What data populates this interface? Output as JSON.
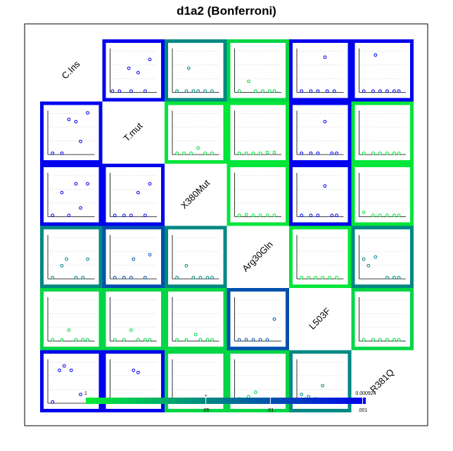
{
  "chart_data": {
    "type": "scatter-matrix",
    "title": "d1a2 (Bonferroni)",
    "variables": [
      "C.Ins",
      "T.mut",
      "X380Mut",
      "Arg30Gln",
      "L503F",
      "R381Q"
    ],
    "pvalue_matrix": [
      [
        null,
        0.001,
        0.05,
        0.5,
        0.001,
        0.001
      ],
      [
        0.001,
        null,
        0.8,
        0.8,
        0.001,
        0.8
      ],
      [
        0.001,
        0.001,
        null,
        0.8,
        0.001,
        0.8
      ],
      [
        0.05,
        0.01,
        0.05,
        null,
        0.8,
        0.05
      ],
      [
        0.5,
        0.5,
        0.5,
        0.01,
        null,
        0.5
      ],
      [
        0.001,
        0.001,
        0.5,
        0.5,
        0.05,
        null
      ]
    ],
    "panel_points": [
      [
        null,
        [
          [
            0.05,
            0.03
          ],
          [
            0.2,
            0.03
          ],
          [
            0.45,
            0.03
          ],
          [
            0.4,
            0.55
          ],
          [
            0.6,
            0.45
          ],
          [
            0.75,
            0.03
          ],
          [
            0.85,
            0.75
          ]
        ],
        [
          [
            0.1,
            0.03
          ],
          [
            0.3,
            0.03
          ],
          [
            0.45,
            0.03
          ],
          [
            0.55,
            0.03
          ],
          [
            0.7,
            0.03
          ],
          [
            0.85,
            0.03
          ],
          [
            0.35,
            0.55
          ]
        ],
        [
          [
            0.1,
            0.03
          ],
          [
            0.3,
            0.25
          ],
          [
            0.45,
            0.03
          ],
          [
            0.6,
            0.03
          ],
          [
            0.75,
            0.03
          ],
          [
            0.85,
            0.03
          ]
        ],
        [
          [
            0.1,
            0.03
          ],
          [
            0.3,
            0.03
          ],
          [
            0.45,
            0.03
          ],
          [
            0.65,
            0.03
          ],
          [
            0.8,
            0.03
          ],
          [
            0.6,
            0.8
          ]
        ],
        [
          [
            0.1,
            0.03
          ],
          [
            0.3,
            0.03
          ],
          [
            0.45,
            0.03
          ],
          [
            0.6,
            0.03
          ],
          [
            0.75,
            0.03
          ],
          [
            0.85,
            0.03
          ],
          [
            0.35,
            0.85
          ]
        ]
      ],
      [
        [
          [
            0.1,
            0.03
          ],
          [
            0.3,
            0.03
          ],
          [
            0.45,
            0.8
          ],
          [
            0.6,
            0.75
          ],
          [
            0.7,
            0.3
          ],
          [
            0.85,
            0.95
          ]
        ],
        null,
        [
          [
            0.1,
            0.03
          ],
          [
            0.25,
            0.03
          ],
          [
            0.4,
            0.03
          ],
          [
            0.55,
            0.15
          ],
          [
            0.7,
            0.03
          ],
          [
            0.85,
            0.03
          ]
        ],
        [
          [
            0.1,
            0.03
          ],
          [
            0.25,
            0.03
          ],
          [
            0.4,
            0.03
          ],
          [
            0.55,
            0.03
          ],
          [
            0.7,
            0.05
          ],
          [
            0.85,
            0.05
          ]
        ],
        [
          [
            0.1,
            0.03
          ],
          [
            0.3,
            0.03
          ],
          [
            0.45,
            0.03
          ],
          [
            0.6,
            0.75
          ],
          [
            0.75,
            0.03
          ],
          [
            0.85,
            0.03
          ]
        ],
        [
          [
            0.1,
            0.03
          ],
          [
            0.3,
            0.03
          ],
          [
            0.45,
            0.03
          ],
          [
            0.6,
            0.03
          ],
          [
            0.75,
            0.03
          ],
          [
            0.85,
            0.03
          ]
        ]
      ],
      [
        [
          [
            0.1,
            0.03
          ],
          [
            0.3,
            0.55
          ],
          [
            0.45,
            0.03
          ],
          [
            0.6,
            0.75
          ],
          [
            0.7,
            0.2
          ],
          [
            0.85,
            0.75
          ]
        ],
        [
          [
            0.1,
            0.03
          ],
          [
            0.3,
            0.03
          ],
          [
            0.45,
            0.03
          ],
          [
            0.6,
            0.55
          ],
          [
            0.75,
            0.03
          ],
          [
            0.85,
            0.75
          ]
        ],
        null,
        [
          [
            0.1,
            0.03
          ],
          [
            0.25,
            0.05
          ],
          [
            0.4,
            0.03
          ],
          [
            0.55,
            0.03
          ],
          [
            0.7,
            0.03
          ],
          [
            0.85,
            0.03
          ]
        ],
        [
          [
            0.1,
            0.03
          ],
          [
            0.3,
            0.03
          ],
          [
            0.45,
            0.03
          ],
          [
            0.6,
            0.7
          ],
          [
            0.75,
            0.03
          ],
          [
            0.85,
            0.03
          ]
        ],
        [
          [
            0.1,
            0.1
          ],
          [
            0.3,
            0.03
          ],
          [
            0.45,
            0.03
          ],
          [
            0.6,
            0.03
          ],
          [
            0.75,
            0.03
          ],
          [
            0.85,
            0.03
          ]
        ]
      ],
      [
        [
          [
            0.1,
            0.03
          ],
          [
            0.3,
            0.3
          ],
          [
            0.4,
            0.45
          ],
          [
            0.6,
            0.03
          ],
          [
            0.75,
            0.03
          ],
          [
            0.85,
            0.45
          ]
        ],
        [
          [
            0.1,
            0.03
          ],
          [
            0.3,
            0.03
          ],
          [
            0.45,
            0.03
          ],
          [
            0.5,
            0.45
          ],
          [
            0.75,
            0.03
          ],
          [
            0.85,
            0.55
          ]
        ],
        [
          [
            0.1,
            0.03
          ],
          [
            0.3,
            0.3
          ],
          [
            0.45,
            0.03
          ],
          [
            0.6,
            0.03
          ],
          [
            0.75,
            0.03
          ],
          [
            0.85,
            0.03
          ]
        ],
        null,
        [
          [
            0.1,
            0.03
          ],
          [
            0.25,
            0.03
          ],
          [
            0.4,
            0.03
          ],
          [
            0.55,
            0.03
          ],
          [
            0.7,
            0.03
          ],
          [
            0.85,
            0.03
          ]
        ],
        [
          [
            0.1,
            0.45
          ],
          [
            0.2,
            0.3
          ],
          [
            0.35,
            0.5
          ],
          [
            0.6,
            0.03
          ],
          [
            0.75,
            0.03
          ],
          [
            0.85,
            0.03
          ]
        ]
      ],
      [
        [
          [
            0.1,
            0.03
          ],
          [
            0.3,
            0.03
          ],
          [
            0.45,
            0.25
          ],
          [
            0.6,
            0.03
          ],
          [
            0.75,
            0.03
          ],
          [
            0.85,
            0.03
          ]
        ],
        [
          [
            0.1,
            0.03
          ],
          [
            0.3,
            0.03
          ],
          [
            0.45,
            0.25
          ],
          [
            0.6,
            0.03
          ],
          [
            0.75,
            0.03
          ],
          [
            0.85,
            0.03
          ]
        ],
        [
          [
            0.1,
            0.03
          ],
          [
            0.3,
            0.03
          ],
          [
            0.5,
            0.15
          ],
          [
            0.6,
            0.03
          ],
          [
            0.75,
            0.03
          ],
          [
            0.85,
            0.03
          ]
        ],
        [
          [
            0.1,
            0.03
          ],
          [
            0.25,
            0.03
          ],
          [
            0.4,
            0.03
          ],
          [
            0.55,
            0.03
          ],
          [
            0.7,
            0.03
          ],
          [
            0.85,
            0.5
          ]
        ],
        null,
        [
          [
            0.1,
            0.03
          ],
          [
            0.3,
            0.03
          ],
          [
            0.45,
            0.03
          ],
          [
            0.6,
            0.03
          ],
          [
            0.75,
            0.03
          ],
          [
            0.85,
            0.03
          ]
        ]
      ],
      [
        [
          [
            0.1,
            0.03
          ],
          [
            0.25,
            0.75
          ],
          [
            0.35,
            0.85
          ],
          [
            0.5,
            0.75
          ],
          [
            0.7,
            0.2
          ],
          [
            0.85,
            0.03
          ]
        ],
        [
          [
            0.1,
            0.03
          ],
          [
            0.3,
            0.03
          ],
          [
            0.5,
            0.75
          ],
          [
            0.6,
            0.7
          ],
          [
            0.75,
            0.03
          ],
          [
            0.85,
            0.03
          ]
        ],
        [
          [
            0.1,
            0.03
          ],
          [
            0.3,
            0.03
          ],
          [
            0.45,
            0.03
          ],
          [
            0.55,
            0.05
          ],
          [
            0.7,
            0.03
          ],
          [
            0.85,
            0.03
          ]
        ],
        [
          [
            0.1,
            0.1
          ],
          [
            0.3,
            0.15
          ],
          [
            0.45,
            0.25
          ],
          [
            0.6,
            0.03
          ],
          [
            0.75,
            0.03
          ],
          [
            0.85,
            0.03
          ]
        ],
        [
          [
            0.1,
            0.2
          ],
          [
            0.25,
            0.15
          ],
          [
            0.4,
            0.1
          ],
          [
            0.55,
            0.4
          ],
          [
            0.7,
            0.03
          ],
          [
            0.85,
            0.03
          ]
        ],
        null
      ]
    ],
    "colorbar": {
      "max_label": "1",
      "min_label": "0.000924",
      "ticks": [
        ".05",
        ".01",
        ".001"
      ],
      "colors": [
        "#00ee33",
        "#0000ee"
      ]
    }
  }
}
